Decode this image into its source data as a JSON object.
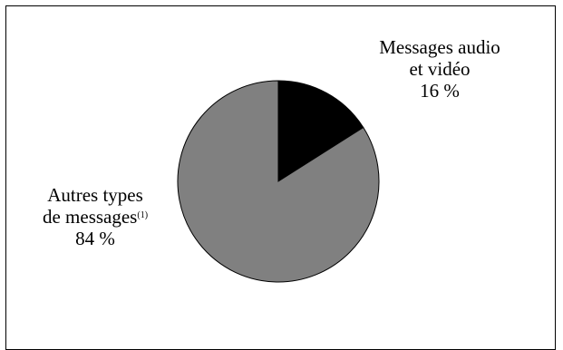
{
  "chart_data": {
    "type": "pie",
    "slices": [
      {
        "label_lines": [
          "Messages audio",
          "et vidéo"
        ],
        "footnote": "",
        "value_text": "16 %",
        "value": 16,
        "color": "#000000"
      },
      {
        "label_lines": [
          "Autres types",
          "de messages"
        ],
        "footnote": "(1)",
        "value_text": "84 %",
        "value": 84,
        "color": "#808080"
      }
    ],
    "start_angle_deg": 0,
    "direction": "clockwise",
    "stroke_color": "#000000"
  }
}
